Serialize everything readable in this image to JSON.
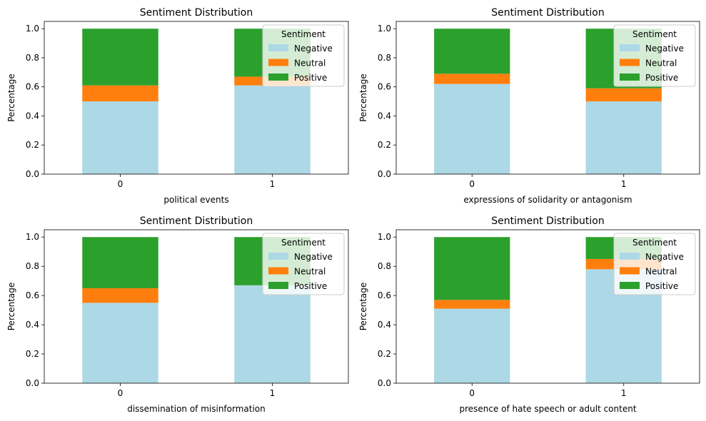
{
  "figure": {
    "legend_title": "Sentiment"
  },
  "chart_data": [
    {
      "type": "bar",
      "stacked": true,
      "title": "Sentiment Distribution",
      "xlabel": "political events",
      "ylabel": "Percentage",
      "categories": [
        "0",
        "1"
      ],
      "ylim": [
        0,
        1.05
      ],
      "yticks": [
        "0.0",
        "0.2",
        "0.4",
        "0.6",
        "0.8",
        "1.0"
      ],
      "legend_title": "Sentiment",
      "legend_position": "upper-right",
      "series": [
        {
          "name": "Negative",
          "color": "#add8e6",
          "values": [
            0.5,
            0.61
          ]
        },
        {
          "name": "Neutral",
          "color": "#ff7f0e",
          "values": [
            0.11,
            0.06
          ]
        },
        {
          "name": "Positive",
          "color": "#2ca02c",
          "values": [
            0.39,
            0.33
          ]
        }
      ]
    },
    {
      "type": "bar",
      "stacked": true,
      "title": "Sentiment Distribution",
      "xlabel": "expressions of solidarity or antagonism",
      "ylabel": "Percentage",
      "categories": [
        "0",
        "1"
      ],
      "ylim": [
        0,
        1.05
      ],
      "yticks": [
        "0.0",
        "0.2",
        "0.4",
        "0.6",
        "0.8",
        "1.0"
      ],
      "legend_title": "Sentiment",
      "legend_position": "upper-right",
      "series": [
        {
          "name": "Negative",
          "color": "#add8e6",
          "values": [
            0.62,
            0.5
          ]
        },
        {
          "name": "Neutral",
          "color": "#ff7f0e",
          "values": [
            0.07,
            0.09
          ]
        },
        {
          "name": "Positive",
          "color": "#2ca02c",
          "values": [
            0.31,
            0.41
          ]
        }
      ]
    },
    {
      "type": "bar",
      "stacked": true,
      "title": "Sentiment Distribution",
      "xlabel": "dissemination of misinformation",
      "ylabel": "Percentage",
      "categories": [
        "0",
        "1"
      ],
      "ylim": [
        0,
        1.05
      ],
      "yticks": [
        "0.0",
        "0.2",
        "0.4",
        "0.6",
        "0.8",
        "1.0"
      ],
      "legend_title": "Sentiment",
      "legend_position": "upper-right",
      "series": [
        {
          "name": "Negative",
          "color": "#add8e6",
          "values": [
            0.55,
            0.67
          ]
        },
        {
          "name": "Neutral",
          "color": "#ff7f0e",
          "values": [
            0.1,
            0.0
          ]
        },
        {
          "name": "Positive",
          "color": "#2ca02c",
          "values": [
            0.35,
            0.33
          ]
        }
      ]
    },
    {
      "type": "bar",
      "stacked": true,
      "title": "Sentiment Distribution",
      "xlabel": "presence of hate speech or adult content",
      "ylabel": "Percentage",
      "categories": [
        "0",
        "1"
      ],
      "ylim": [
        0,
        1.05
      ],
      "yticks": [
        "0.0",
        "0.2",
        "0.4",
        "0.6",
        "0.8",
        "1.0"
      ],
      "legend_title": "Sentiment",
      "legend_position": "upper-right",
      "series": [
        {
          "name": "Negative",
          "color": "#add8e6",
          "values": [
            0.51,
            0.78
          ]
        },
        {
          "name": "Neutral",
          "color": "#ff7f0e",
          "values": [
            0.06,
            0.07
          ]
        },
        {
          "name": "Positive",
          "color": "#2ca02c",
          "values": [
            0.43,
            0.15
          ]
        }
      ]
    }
  ]
}
